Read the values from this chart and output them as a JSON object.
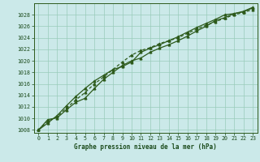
{
  "title": "Graphe pression niveau de la mer (hPa)",
  "bg_color": "#cbe9e9",
  "plot_bg_color": "#cbe9e9",
  "grid_color": "#99ccbb",
  "line_color": "#2d5a1b",
  "border_color": "#2d5a1b",
  "title_color": "#1a4a1a",
  "tick_color": "#1a4a1a",
  "xlim": [
    -0.5,
    23.5
  ],
  "ylim": [
    1007.5,
    1030.0
  ],
  "yticks": [
    1008,
    1010,
    1012,
    1014,
    1016,
    1018,
    1020,
    1022,
    1024,
    1026,
    1028
  ],
  "xticks": [
    0,
    1,
    2,
    3,
    4,
    5,
    6,
    7,
    8,
    9,
    10,
    11,
    12,
    13,
    14,
    15,
    16,
    17,
    18,
    19,
    20,
    21,
    22,
    23
  ],
  "series1_x": [
    0,
    1,
    2,
    3,
    4,
    5,
    6,
    7,
    8,
    9,
    10,
    11,
    12,
    13,
    14,
    15,
    16,
    17,
    18,
    19,
    20,
    21,
    22,
    23
  ],
  "series1_y": [
    1008.0,
    1009.8,
    1010.1,
    1011.5,
    1012.8,
    1013.5,
    1015.2,
    1016.8,
    1018.0,
    1019.2,
    1020.0,
    1020.5,
    1021.5,
    1022.2,
    1022.8,
    1023.5,
    1024.3,
    1025.2,
    1026.0,
    1027.0,
    1027.5,
    1028.2,
    1028.5,
    1029.2
  ],
  "series2_x": [
    0,
    1,
    2,
    3,
    4,
    5,
    6,
    7,
    8,
    9,
    10,
    11,
    12,
    13,
    14,
    15,
    16,
    17,
    18,
    19,
    20,
    21,
    22,
    23
  ],
  "series2_y": [
    1008.0,
    1009.5,
    1010.3,
    1011.8,
    1013.2,
    1014.5,
    1016.0,
    1017.2,
    1018.5,
    1019.8,
    1021.0,
    1021.8,
    1022.3,
    1023.0,
    1023.5,
    1024.0,
    1024.8,
    1025.5,
    1026.2,
    1026.8,
    1027.4,
    1028.0,
    1028.4,
    1028.9
  ],
  "series3_x": [
    0,
    1,
    2,
    3,
    4,
    5,
    6,
    7,
    8,
    9,
    10,
    11,
    12,
    13,
    14,
    15,
    16,
    17,
    18,
    19,
    20,
    21,
    22,
    23
  ],
  "series3_y": [
    1008.0,
    1009.2,
    1010.5,
    1012.2,
    1013.8,
    1015.2,
    1016.5,
    1017.5,
    1018.5,
    1019.0,
    1019.8,
    1021.5,
    1022.2,
    1022.8,
    1023.5,
    1024.2,
    1025.0,
    1025.8,
    1026.5,
    1027.2,
    1028.0,
    1028.2,
    1028.6,
    1029.3
  ],
  "title_fontsize": 5.5,
  "tick_fontsize": 4.8
}
